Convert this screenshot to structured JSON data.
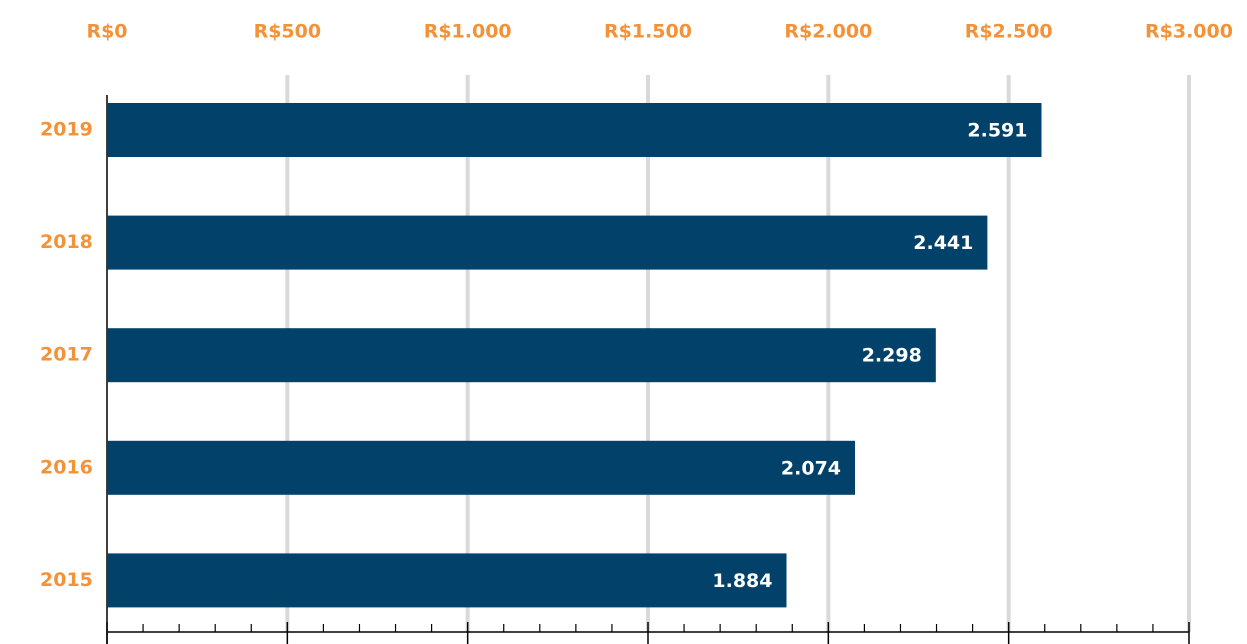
{
  "chart_data": {
    "type": "bar",
    "orientation": "horizontal",
    "categories": [
      "2019",
      "2018",
      "2017",
      "2016",
      "2015"
    ],
    "values": [
      2591,
      2441,
      2298,
      2074,
      1884
    ],
    "value_labels": [
      "2.591",
      "2.441",
      "2.298",
      "2.074",
      "1.884"
    ],
    "color": "#02426a",
    "xlim": [
      0,
      3000
    ],
    "xticks": [
      {
        "value": 0,
        "label": "R$0"
      },
      {
        "value": 500,
        "label": "R$500"
      },
      {
        "value": 1000,
        "label": "R$1.000"
      },
      {
        "value": 1500,
        "label": "R$1.500"
      },
      {
        "value": 2000,
        "label": "R$2.000"
      },
      {
        "value": 2500,
        "label": "R$2.500"
      },
      {
        "value": 3000,
        "label": "R$3.000"
      }
    ],
    "xminorticks": [
      100,
      200,
      300,
      400,
      600,
      700,
      800,
      900,
      1100,
      1200,
      1300,
      1400,
      1600,
      1700,
      1800,
      1900,
      2100,
      2200,
      2300,
      2400,
      2600,
      2700,
      2800,
      2900
    ],
    "grid": true
  }
}
